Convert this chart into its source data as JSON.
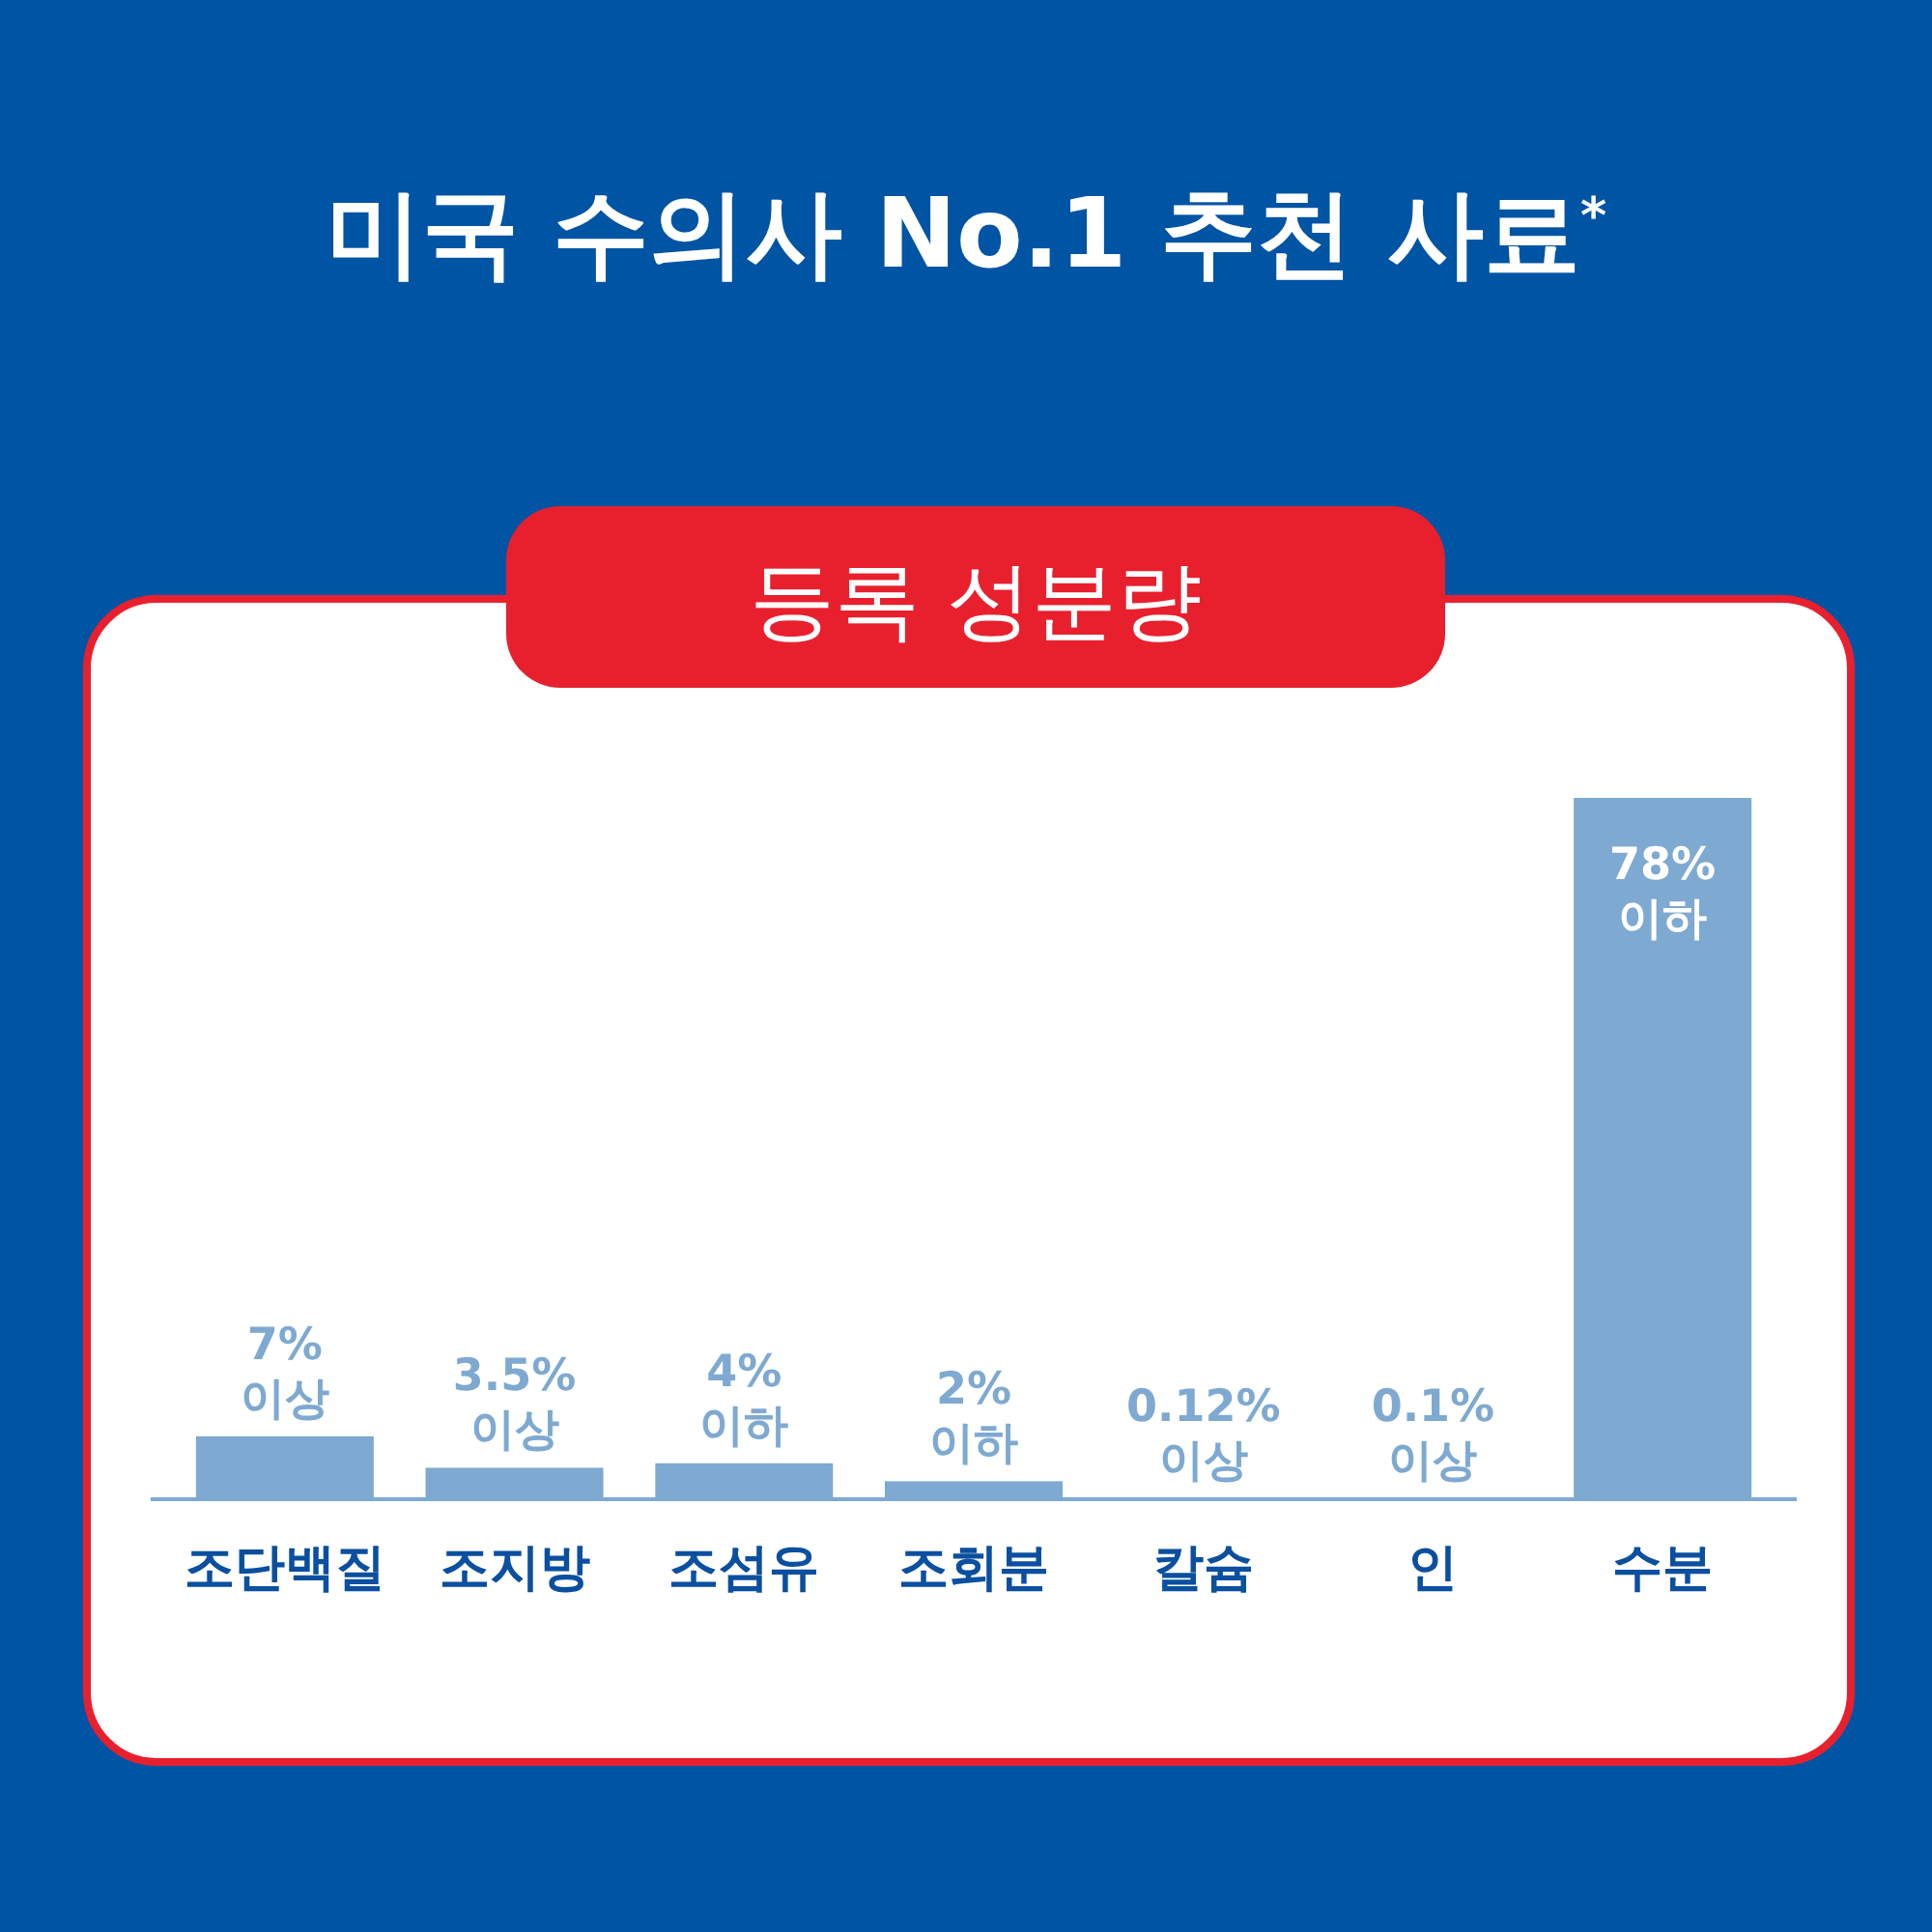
{
  "chart_data": {
    "type": "bar",
    "title": "미국 수의사 No.1 추천 사료$^{*}$",
    "subtitle": "등록 성분량",
    "categories": [
      "조단백질",
      "조지방",
      "조섬유",
      "조회분",
      "칼슘",
      "인",
      "수분"
    ],
    "values": [
      7,
      3.5,
      4,
      2,
      0.12,
      0.1,
      78
    ],
    "color": "#7ea9d1",
    "value_labels": [
      "7%\n이상",
      "3.5%\n이상",
      "4%\n이하",
      "2%\n이하",
      "0.12%\n이상",
      "0.1%\n이상",
      "78%\n이하"
    ]
  }
}
